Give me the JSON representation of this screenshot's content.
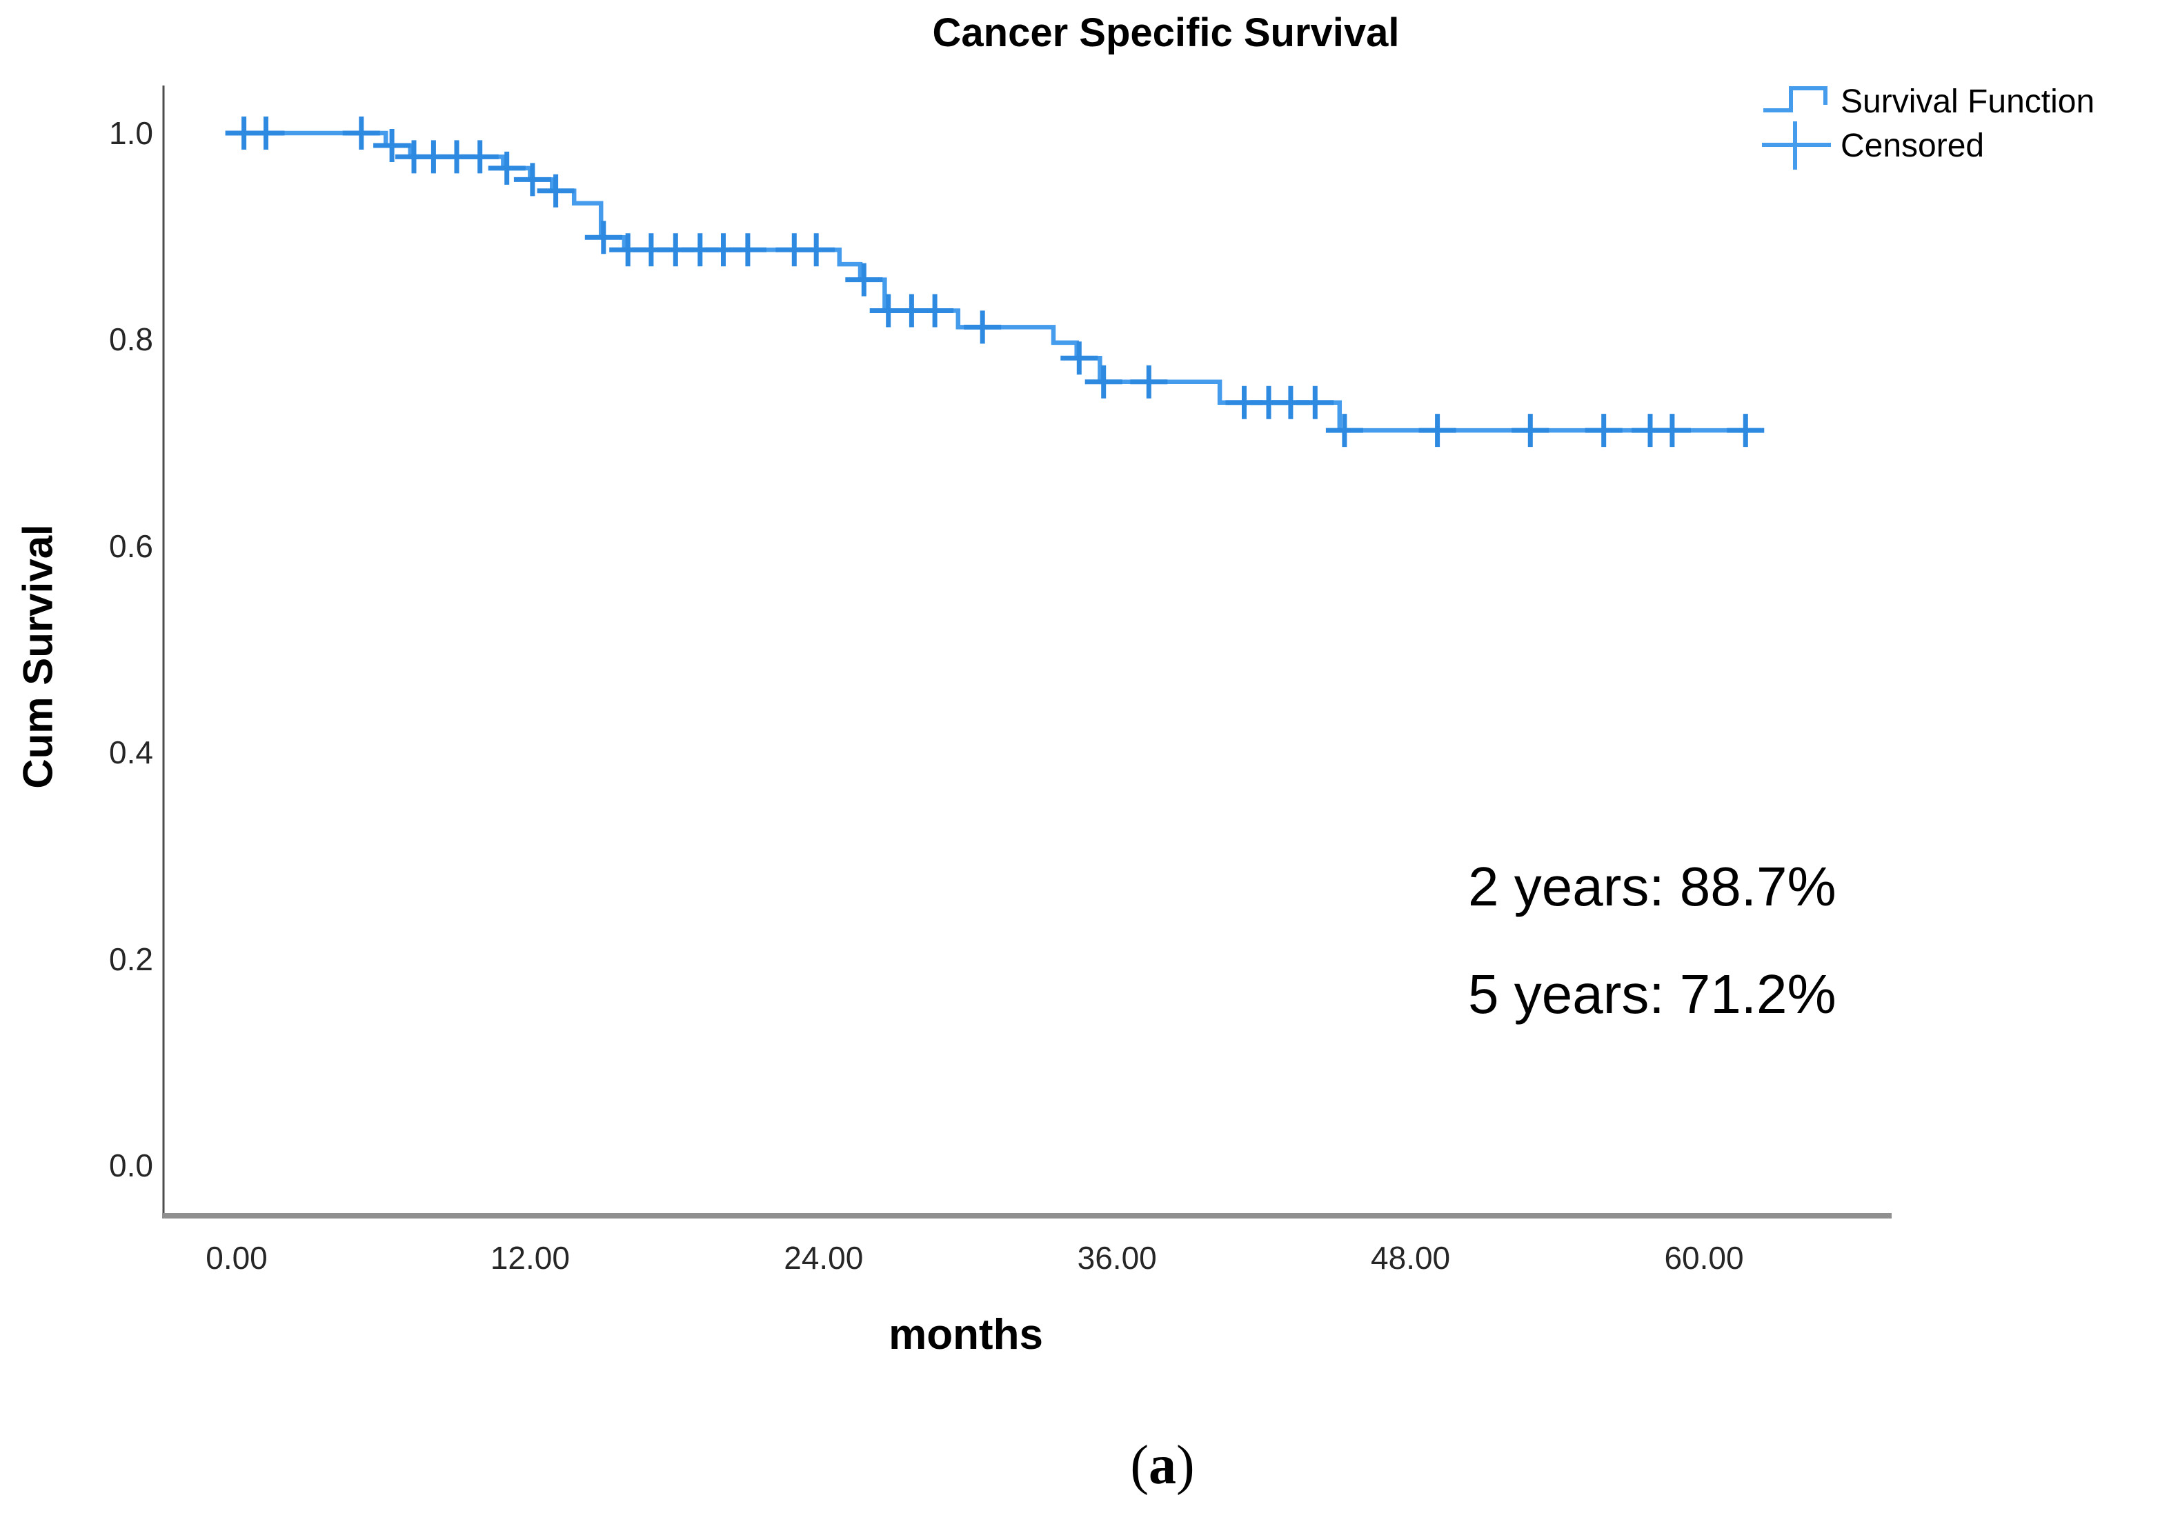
{
  "title": "Cancer Specific Survival",
  "legend": {
    "items": [
      {
        "label": "Survival Function",
        "glyph": "step-line-icon"
      },
      {
        "label": "Censored",
        "glyph": "plus-icon"
      }
    ]
  },
  "axes": {
    "x": {
      "title": "months",
      "tick_labels": [
        "0.00",
        "12.00",
        "24.00",
        "36.00",
        "48.00",
        "60.00"
      ],
      "tick_values": [
        0,
        12,
        24,
        36,
        48,
        60
      ],
      "range": [
        0,
        63.5
      ]
    },
    "y": {
      "title": "Cum Survival",
      "tick_labels": [
        "0.0",
        "0.2",
        "0.4",
        "0.6",
        "0.8",
        "1.0"
      ],
      "tick_values": [
        0.0,
        0.2,
        0.4,
        0.6,
        0.8,
        1.0
      ],
      "range": [
        0,
        1.05
      ]
    }
  },
  "annotations": [
    {
      "text": "2 years: 88.7%"
    },
    {
      "text": "5 years: 71.2%"
    }
  ],
  "caption": {
    "prefix": "(",
    "letter": "a",
    "suffix": ")"
  },
  "colors": {
    "curve": "#459BEC",
    "censor": "#2E89E0",
    "axis_line": "#4d4d4d",
    "baseline": "#8f8f8f",
    "text": "#000000",
    "tick_text": "#262626"
  },
  "chart_data": {
    "type": "line",
    "subtype": "kaplan-meier-step",
    "title": "Cancer Specific Survival",
    "xlabel": "months",
    "ylabel": "Cum Survival",
    "xlim": [
      0,
      63.5
    ],
    "ylim": [
      0,
      1.05
    ],
    "grid": false,
    "legend_position": "top-right",
    "series_name": "Survival Function",
    "survival_at_2_years": 0.887,
    "survival_at_5_years": 0.712,
    "end_time": 62.3,
    "steps": [
      {
        "t": 0.0,
        "s": 1.0
      },
      {
        "t": 6.1,
        "s": 0.988
      },
      {
        "t": 7.1,
        "s": 0.977
      },
      {
        "t": 10.9,
        "s": 0.966
      },
      {
        "t": 12.0,
        "s": 0.955
      },
      {
        "t": 12.9,
        "s": 0.944
      },
      {
        "t": 13.8,
        "s": 0.932
      },
      {
        "t": 14.9,
        "s": 0.899
      },
      {
        "t": 15.85,
        "s": 0.887
      },
      {
        "t": 24.65,
        "s": 0.873
      },
      {
        "t": 25.5,
        "s": 0.858
      },
      {
        "t": 26.5,
        "s": 0.828
      },
      {
        "t": 29.5,
        "s": 0.812
      },
      {
        "t": 33.4,
        "s": 0.797
      },
      {
        "t": 34.35,
        "s": 0.782
      },
      {
        "t": 35.3,
        "s": 0.759
      },
      {
        "t": 40.2,
        "s": 0.739
      },
      {
        "t": 45.1,
        "s": 0.712
      }
    ],
    "censored": [
      {
        "t": 0.3,
        "s": 1.0
      },
      {
        "t": 1.2,
        "s": 1.0
      },
      {
        "t": 5.1,
        "s": 1.0
      },
      {
        "t": 6.35,
        "s": 0.988
      },
      {
        "t": 7.25,
        "s": 0.977
      },
      {
        "t": 8.05,
        "s": 0.977
      },
      {
        "t": 9.0,
        "s": 0.977
      },
      {
        "t": 9.95,
        "s": 0.977
      },
      {
        "t": 11.05,
        "s": 0.966
      },
      {
        "t": 12.1,
        "s": 0.955
      },
      {
        "t": 13.05,
        "s": 0.944
      },
      {
        "t": 15.0,
        "s": 0.899
      },
      {
        "t": 16.0,
        "s": 0.887
      },
      {
        "t": 16.95,
        "s": 0.887
      },
      {
        "t": 17.95,
        "s": 0.887
      },
      {
        "t": 18.95,
        "s": 0.887
      },
      {
        "t": 19.9,
        "s": 0.887
      },
      {
        "t": 20.9,
        "s": 0.887
      },
      {
        "t": 22.8,
        "s": 0.887
      },
      {
        "t": 23.7,
        "s": 0.887
      },
      {
        "t": 25.65,
        "s": 0.858
      },
      {
        "t": 26.65,
        "s": 0.828
      },
      {
        "t": 27.6,
        "s": 0.828
      },
      {
        "t": 28.55,
        "s": 0.828
      },
      {
        "t": 30.5,
        "s": 0.812
      },
      {
        "t": 34.45,
        "s": 0.782
      },
      {
        "t": 35.45,
        "s": 0.759
      },
      {
        "t": 37.3,
        "s": 0.759
      },
      {
        "t": 41.2,
        "s": 0.739
      },
      {
        "t": 42.2,
        "s": 0.739
      },
      {
        "t": 43.1,
        "s": 0.739
      },
      {
        "t": 44.1,
        "s": 0.739
      },
      {
        "t": 45.3,
        "s": 0.712
      },
      {
        "t": 49.1,
        "s": 0.712
      },
      {
        "t": 52.9,
        "s": 0.712
      },
      {
        "t": 55.9,
        "s": 0.712
      },
      {
        "t": 57.8,
        "s": 0.712
      },
      {
        "t": 58.7,
        "s": 0.712
      },
      {
        "t": 61.7,
        "s": 0.712
      }
    ]
  }
}
